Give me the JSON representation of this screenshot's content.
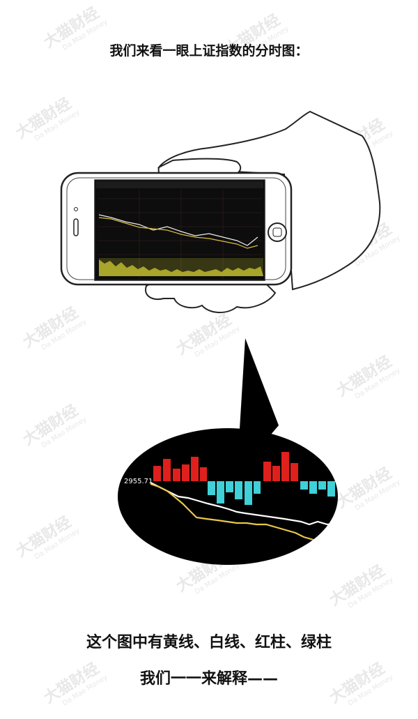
{
  "text": {
    "heading": "我们来看一眼上证指数的分时图：",
    "line1": "这个图中有黄线、白线、红柱、绿柱",
    "line2": "我们一一来解释——"
  },
  "watermark": {
    "cn": "大猫财经",
    "en": "Da Mao Money"
  },
  "zoom_chart": {
    "price_label": "2955.71",
    "colors": {
      "red": "#e0201c",
      "cyan": "#3fd0d8",
      "white": "#ffffff",
      "yellow": "#e8c84a",
      "bg": "#000000"
    }
  }
}
